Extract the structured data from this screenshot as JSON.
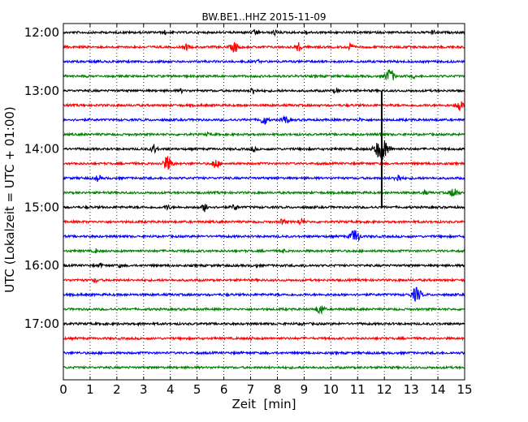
{
  "chart_data": {
    "type": "line",
    "title": "BW.BE1..HHZ 2015-11-09",
    "xlabel": "Zeit  [min]",
    "ylabel": "UTC (Lokalzeit = UTC + 01:00)",
    "xlim": [
      0,
      15
    ],
    "x_ticks": [
      0,
      1,
      2,
      3,
      4,
      5,
      6,
      7,
      8,
      9,
      10,
      11,
      12,
      13,
      14,
      15
    ],
    "y_ticks": [
      "12:00",
      "13:00",
      "14:00",
      "15:00",
      "16:00",
      "17:00"
    ],
    "line_interval_minutes": 15,
    "grid": "vertical dotted",
    "colors": [
      "#000000",
      "#ff0000",
      "#0000ff",
      "#008000"
    ],
    "traces": [
      {
        "start": "12:00",
        "color": "#000000",
        "events": [
          [
            3.8,
            0.15
          ],
          [
            7.2,
            0.25
          ],
          [
            7.9,
            0.2
          ],
          [
            9.1,
            0.12
          ],
          [
            13.8,
            0.15
          ]
        ]
      },
      {
        "start": "12:15",
        "color": "#ff0000",
        "events": [
          [
            4.6,
            0.25
          ],
          [
            6.4,
            0.45
          ],
          [
            8.8,
            0.35
          ],
          [
            10.7,
            0.3
          ]
        ]
      },
      {
        "start": "12:30",
        "color": "#0000ff",
        "events": [
          [
            1.3,
            0.1
          ],
          [
            7.3,
            0.1
          ]
        ]
      },
      {
        "start": "12:45",
        "color": "#008000",
        "events": [
          [
            12.2,
            0.6
          ],
          [
            13.1,
            0.12
          ]
        ]
      },
      {
        "start": "13:00",
        "color": "#000000",
        "events": [
          [
            4.4,
            0.15
          ],
          [
            7.1,
            0.3
          ],
          [
            10.2,
            0.2
          ]
        ]
      },
      {
        "start": "13:15",
        "color": "#ff0000",
        "events": [
          [
            14.8,
            0.45
          ]
        ]
      },
      {
        "start": "13:30",
        "color": "#0000ff",
        "events": [
          [
            7.5,
            0.4
          ],
          [
            8.3,
            0.35
          ],
          [
            11.1,
            0.12
          ]
        ]
      },
      {
        "start": "13:45",
        "color": "#008000",
        "events": [
          [
            5.4,
            0.1
          ],
          [
            11.9,
            0.15
          ]
        ]
      },
      {
        "start": "14:00",
        "color": "#000000",
        "events": [
          [
            3.4,
            0.35
          ],
          [
            7.1,
            0.2
          ],
          [
            11.9,
            1.0
          ]
        ]
      },
      {
        "start": "14:15",
        "color": "#ff0000",
        "events": [
          [
            3.9,
            0.6
          ],
          [
            5.7,
            0.4
          ]
        ]
      },
      {
        "start": "14:30",
        "color": "#0000ff",
        "events": [
          [
            1.3,
            0.25
          ],
          [
            12.5,
            0.35
          ]
        ]
      },
      {
        "start": "14:45",
        "color": "#008000",
        "events": [
          [
            13.5,
            0.2
          ],
          [
            14.6,
            0.45
          ]
        ]
      },
      {
        "start": "15:00",
        "color": "#000000",
        "events": [
          [
            3.9,
            0.2
          ],
          [
            5.3,
            0.35
          ],
          [
            6.4,
            0.25
          ]
        ]
      },
      {
        "start": "15:15",
        "color": "#ff0000",
        "events": [
          [
            8.2,
            0.25
          ],
          [
            8.9,
            0.3
          ]
        ]
      },
      {
        "start": "15:30",
        "color": "#0000ff",
        "events": [
          [
            10.9,
            0.6
          ]
        ]
      },
      {
        "start": "15:45",
        "color": "#008000",
        "events": [
          [
            1.2,
            0.15
          ],
          [
            8.2,
            0.15
          ]
        ]
      },
      {
        "start": "16:00",
        "color": "#000000",
        "events": [
          [
            1.4,
            0.15
          ],
          [
            2.1,
            0.1
          ],
          [
            7.2,
            0.1
          ],
          [
            9.0,
            0.1
          ]
        ]
      },
      {
        "start": "16:15",
        "color": "#ff0000",
        "events": [
          [
            1.2,
            0.2
          ]
        ]
      },
      {
        "start": "16:30",
        "color": "#0000ff",
        "events": [
          [
            13.2,
            0.6
          ]
        ]
      },
      {
        "start": "16:45",
        "color": "#008000",
        "events": [
          [
            9.6,
            0.45
          ]
        ]
      },
      {
        "start": "17:00",
        "color": "#000000",
        "events": [
          [
            2.8,
            0.1
          ],
          [
            8.9,
            0.1
          ]
        ]
      },
      {
        "start": "17:15",
        "color": "#ff0000",
        "events": [
          [
            7.0,
            0.12
          ]
        ]
      },
      {
        "start": "17:30",
        "color": "#0000ff",
        "events": []
      },
      {
        "start": "17:45",
        "color": "#008000",
        "events": []
      }
    ],
    "annotations": [
      {
        "type": "spike",
        "x": 11.9,
        "from": "13:00",
        "to": "15:00"
      }
    ]
  }
}
